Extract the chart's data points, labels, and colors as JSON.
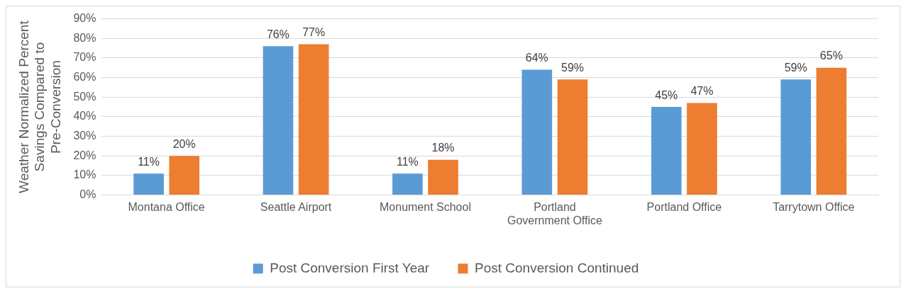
{
  "chart_data": {
    "type": "bar",
    "ylabel": "Weather Normalized Percent Savings Compared to Pre-Conversion",
    "categories": [
      "Montana Office",
      "Seattle Airport",
      "Monument School",
      "Portland Government Office",
      "Portland Office",
      "Tarrytown Office"
    ],
    "series": [
      {
        "name": "Post Conversion First Year",
        "color": "#5b9bd5",
        "values": [
          11,
          76,
          11,
          64,
          45,
          59
        ],
        "value_labels": [
          "11%",
          "76%",
          "11%",
          "64%",
          "45%",
          "59%"
        ]
      },
      {
        "name": "Post Conversion Continued",
        "color": "#ed7d31",
        "values": [
          20,
          77,
          18,
          59,
          47,
          65
        ],
        "value_labels": [
          "20%",
          "77%",
          "18%",
          "59%",
          "47%",
          "65%"
        ]
      }
    ],
    "ylim": [
      0,
      90
    ],
    "yticks": [
      {
        "value": 0,
        "label": "0%"
      },
      {
        "value": 10,
        "label": "10%"
      },
      {
        "value": 20,
        "label": "20%"
      },
      {
        "value": 30,
        "label": "30%"
      },
      {
        "value": 40,
        "label": "40%"
      },
      {
        "value": 50,
        "label": "50%"
      },
      {
        "value": 60,
        "label": "60%"
      },
      {
        "value": 70,
        "label": "70%"
      },
      {
        "value": 80,
        "label": "80%"
      },
      {
        "value": 90,
        "label": "90%"
      }
    ],
    "grid": "y",
    "legend": "bottom"
  }
}
